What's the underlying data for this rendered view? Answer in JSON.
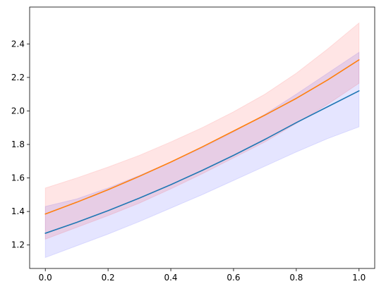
{
  "chart_data": {
    "type": "line",
    "title": "",
    "xlabel": "",
    "ylabel": "",
    "xlim": [
      -0.05,
      1.05
    ],
    "ylim": [
      1.06,
      2.62
    ],
    "grid": false,
    "legend": "none",
    "x_ticks": [
      0.0,
      0.2,
      0.4,
      0.6,
      0.8,
      1.0
    ],
    "x_tick_labels": [
      "0.0",
      "0.2",
      "0.4",
      "0.6",
      "0.8",
      "1.0"
    ],
    "y_ticks": [
      1.2,
      1.4,
      1.6,
      1.8,
      2.0,
      2.2,
      2.4
    ],
    "y_tick_labels": [
      "1.2",
      "1.4",
      "1.6",
      "1.8",
      "2.0",
      "2.2",
      "2.4"
    ],
    "x": [
      0.0,
      0.1,
      0.2,
      0.3,
      0.4,
      0.5,
      0.6,
      0.7,
      0.8,
      0.9,
      1.0
    ],
    "series": [
      {
        "color": "#1f77b4",
        "band_color": "#0000ff",
        "band_opacity": 0.1,
        "values": [
          1.27,
          1.335,
          1.405,
          1.48,
          1.56,
          1.645,
          1.735,
          1.83,
          1.93,
          2.025,
          2.12
        ],
        "lower": [
          1.125,
          1.195,
          1.265,
          1.34,
          1.42,
          1.5,
          1.585,
          1.67,
          1.755,
          1.835,
          1.905
        ],
        "upper": [
          1.43,
          1.475,
          1.54,
          1.615,
          1.695,
          1.78,
          1.875,
          1.98,
          2.1,
          2.225,
          2.35
        ]
      },
      {
        "color": "#ff7f0e",
        "band_color": "#ff0000",
        "band_opacity": 0.1,
        "values": [
          1.385,
          1.455,
          1.53,
          1.61,
          1.695,
          1.785,
          1.88,
          1.975,
          2.075,
          2.185,
          2.305
        ],
        "lower": [
          1.235,
          1.305,
          1.375,
          1.45,
          1.535,
          1.625,
          1.72,
          1.815,
          1.925,
          2.04,
          2.165
        ],
        "upper": [
          1.54,
          1.6,
          1.665,
          1.735,
          1.815,
          1.9,
          1.995,
          2.1,
          2.225,
          2.37,
          2.525
        ]
      }
    ]
  }
}
